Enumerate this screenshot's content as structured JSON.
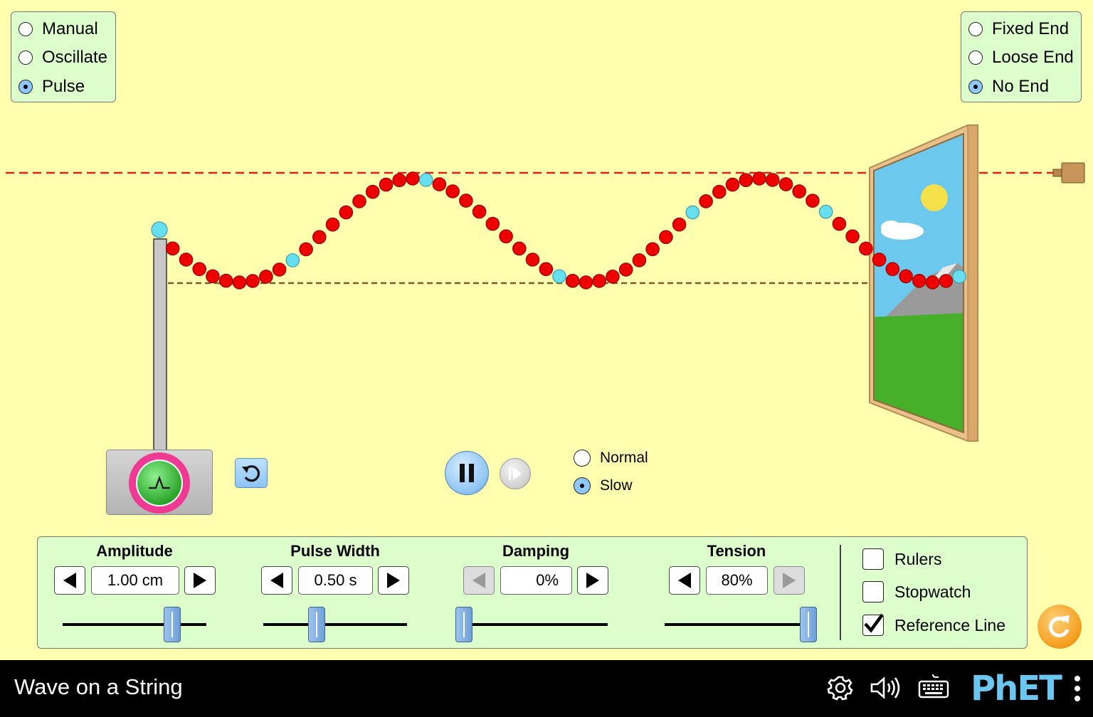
{
  "mode_options": [
    {
      "label": "Manual",
      "selected": false
    },
    {
      "label": "Oscillate",
      "selected": false
    },
    {
      "label": "Pulse",
      "selected": true
    }
  ],
  "end_options": [
    {
      "label": "Fixed End",
      "selected": false
    },
    {
      "label": "Loose End",
      "selected": false
    },
    {
      "label": "No End",
      "selected": true
    }
  ],
  "speed_options": [
    {
      "label": "Normal",
      "selected": false
    },
    {
      "label": "Slow",
      "selected": true
    }
  ],
  "controls": {
    "amplitude": {
      "label": "Amplitude",
      "value": "1.00 cm",
      "slider_fraction": 0.76
    },
    "pulse_width": {
      "label": "Pulse Width",
      "value": "0.50 s",
      "slider_fraction": 0.37
    },
    "damping": {
      "label": "Damping",
      "value": "0%",
      "slider_fraction": 0.0
    },
    "tension": {
      "label": "Tension",
      "value": "80%",
      "slider_fraction": 1.0
    }
  },
  "checkboxes": {
    "rulers": {
      "label": "Rulers",
      "checked": false
    },
    "stopwatch": {
      "label": "Stopwatch",
      "checked": false
    },
    "reference_line": {
      "label": "Reference Line",
      "checked": true
    }
  },
  "playback": {
    "paused": false
  },
  "navbar": {
    "title": "Wave on a String",
    "brand": "PhET"
  },
  "icons": {
    "settings": "gear-icon",
    "sound": "speaker-icon",
    "keyboard": "keyboard-icon",
    "menu": "kebab-menu-icon"
  },
  "colors": {
    "background": "#ffffb0",
    "panel": "#ddffcc",
    "bead": "#ee0000",
    "bead_highlight": "#66e0f0",
    "reference_line": "#e02020",
    "baseline": "#7a5a2a"
  }
}
